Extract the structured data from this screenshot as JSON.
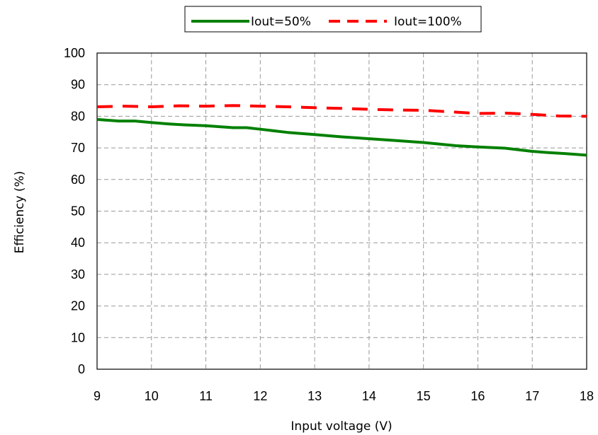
{
  "chart_data": {
    "type": "line",
    "xlabel": "Input voltage (V)",
    "ylabel": "Efficiency (%)",
    "xlim": [
      9,
      18
    ],
    "ylim": [
      0,
      100
    ],
    "xticks": [
      "9",
      "10",
      "11",
      "12",
      "13",
      "14",
      "15",
      "16",
      "17",
      "18"
    ],
    "yticks": [
      "0",
      "10",
      "20",
      "30",
      "40",
      "50",
      "60",
      "70",
      "80",
      "90",
      "100"
    ],
    "grid": true,
    "legend_position": "top-center",
    "series": [
      {
        "name": "Iout=50%",
        "color": "#008000",
        "style": "solid",
        "x": [
          9,
          9.4,
          9.7,
          10,
          10.3,
          10.6,
          11,
          11.5,
          11.75,
          12,
          12.5,
          13,
          13.5,
          14,
          14.5,
          15,
          15.3,
          15.6,
          16,
          16.5,
          17,
          17.3,
          17.6,
          18
        ],
        "y": [
          79,
          78.5,
          78.5,
          78,
          77.6,
          77.3,
          77,
          76.4,
          76.4,
          75.9,
          74.9,
          74.2,
          73.5,
          72.9,
          72.3,
          71.7,
          71.2,
          70.7,
          70.3,
          69.9,
          68.9,
          68.5,
          68.2,
          67.7
        ]
      },
      {
        "name": "Iout=100%",
        "color": "#ff0000",
        "style": "dashed",
        "x": [
          9,
          9.5,
          10,
          10.5,
          11,
          11.5,
          12,
          12.5,
          13,
          13.5,
          14,
          14.5,
          15,
          15.5,
          16,
          16.5,
          17,
          17.5,
          18
        ],
        "y": [
          83,
          83.2,
          83,
          83.3,
          83.2,
          83.4,
          83.2,
          83,
          82.7,
          82.5,
          82.2,
          82,
          81.9,
          81.4,
          80.9,
          81,
          80.6,
          80.1,
          80
        ]
      }
    ]
  }
}
